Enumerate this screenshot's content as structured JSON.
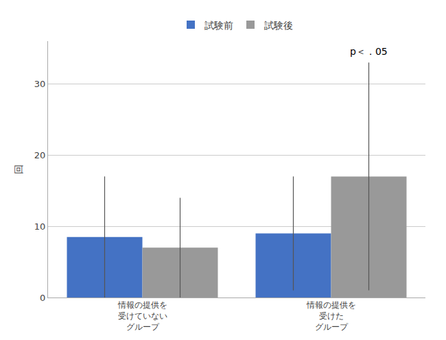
{
  "chart_data": {
    "type": "bar",
    "categories": [
      "情報の提供を\n受けていない\nグループ",
      "情報の提供を\n受けた\nグループ"
    ],
    "series": [
      {
        "name": "試験前",
        "color": "#4472c4",
        "values": [
          8.5,
          9.0
        ],
        "errors": [
          8.5,
          8.0
        ]
      },
      {
        "name": "試験後",
        "color": "#999999",
        "values": [
          7.0,
          17.0
        ],
        "errors": [
          7.0,
          16.0
        ]
      }
    ],
    "ylabel": "回",
    "ylim": [
      0,
      36
    ],
    "yticks": [
      0,
      10,
      20,
      30
    ],
    "grid": true,
    "legend": "top",
    "annotations": [
      {
        "text": "p＜．05",
        "category": "情報の提供を\n受けた\nグループ",
        "series": "試験後"
      }
    ]
  }
}
